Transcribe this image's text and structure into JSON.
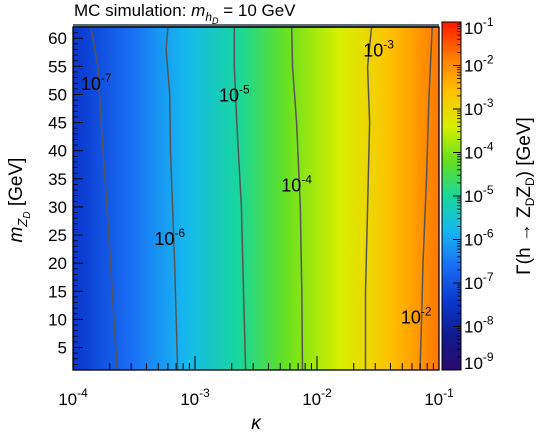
{
  "chart_data": {
    "type": "heatmap",
    "title": {
      "prefix": "MC simulation: ",
      "var": "m",
      "sub": "h",
      "subsub": "D",
      "suffix": " = 10 GeV"
    },
    "xlabel": "κ",
    "ylabel": {
      "var": "m",
      "sub": "Z",
      "subsub": "D",
      "unit": " [GeV]"
    },
    "zlabel": {
      "text": "Γ(h → Z",
      "sub1": "D",
      "mid": "Z",
      "sub2": "D",
      "end": ") [GeV]"
    },
    "x_scale": "log",
    "z_scale": "log",
    "xlim": [
      0.0001,
      0.1
    ],
    "ylim": [
      1,
      62
    ],
    "zlim": [
      1e-09,
      0.1
    ],
    "x_ticks": [
      {
        "value": 0.0001,
        "base": "10",
        "exp": "-4"
      },
      {
        "value": 0.001,
        "base": "10",
        "exp": "-3"
      },
      {
        "value": 0.01,
        "base": "10",
        "exp": "-2"
      },
      {
        "value": 0.1,
        "base": "10",
        "exp": "-1"
      }
    ],
    "y_ticks": [
      5,
      10,
      15,
      20,
      25,
      30,
      35,
      40,
      45,
      50,
      55,
      60
    ],
    "z_ticks": [
      {
        "value": 1e-09,
        "base": "10",
        "exp": "-9"
      },
      {
        "value": 1e-08,
        "base": "10",
        "exp": "-8"
      },
      {
        "value": 1e-07,
        "base": "10",
        "exp": "-7"
      },
      {
        "value": 1e-06,
        "base": "10",
        "exp": "-6"
      },
      {
        "value": 1e-05,
        "base": "10",
        "exp": "-5"
      },
      {
        "value": 0.0001,
        "base": "10",
        "exp": "-4"
      },
      {
        "value": 0.001,
        "base": "10",
        "exp": "-3"
      },
      {
        "value": 0.01,
        "base": "10",
        "exp": "-2"
      },
      {
        "value": 0.1,
        "base": "10",
        "exp": "-1"
      }
    ],
    "contours": [
      {
        "level": 1e-07,
        "base": "10",
        "exp": "-7",
        "points": [
          [
            0.00023,
            1
          ],
          [
            0.00021,
            15
          ],
          [
            0.00019,
            30
          ],
          [
            0.00017,
            45
          ],
          [
            0.00016,
            55
          ],
          [
            0.00014,
            62
          ]
        ],
        "label_at": [
          0.000155,
          52
        ]
      },
      {
        "level": 1e-06,
        "base": "10",
        "exp": "-6",
        "points": [
          [
            0.00072,
            1
          ],
          [
            0.00068,
            20
          ],
          [
            0.00063,
            40
          ],
          [
            0.00062,
            50
          ],
          [
            0.00058,
            58
          ],
          [
            0.0006,
            62
          ]
        ],
        "label_at": [
          0.00062,
          24.5
        ]
      },
      {
        "level": 1e-05,
        "base": "10",
        "exp": "-5",
        "points": [
          [
            0.0026,
            1
          ],
          [
            0.0025,
            15
          ],
          [
            0.0024,
            30
          ],
          [
            0.0022,
            45
          ],
          [
            0.0021,
            55
          ],
          [
            0.0021,
            62
          ]
        ],
        "label_at": [
          0.0021,
          50
        ]
      },
      {
        "level": 0.0001,
        "base": "10",
        "exp": "-4",
        "points": [
          [
            0.0076,
            1
          ],
          [
            0.0075,
            15
          ],
          [
            0.0073,
            30
          ],
          [
            0.0068,
            45
          ],
          [
            0.0063,
            55
          ],
          [
            0.0062,
            62
          ]
        ],
        "label_at": [
          0.0068,
          34
        ]
      },
      {
        "level": 0.001,
        "base": "10",
        "exp": "-3",
        "points": [
          [
            0.025,
            1
          ],
          [
            0.025,
            15
          ],
          [
            0.026,
            30
          ],
          [
            0.027,
            45
          ],
          [
            0.026,
            55
          ],
          [
            0.028,
            62
          ]
        ],
        "label_at": [
          0.032,
          58
        ]
      },
      {
        "level": 0.01,
        "base": "10",
        "exp": "-2",
        "points": [
          [
            0.07,
            1
          ],
          [
            0.072,
            10
          ],
          [
            0.074,
            20
          ],
          [
            0.079,
            35
          ],
          [
            0.083,
            50
          ],
          [
            0.088,
            62
          ]
        ],
        "label_at": [
          0.065,
          10.5
        ]
      }
    ],
    "colormap": [
      "#2a0a6e",
      "#101a90",
      "#0a3ad0",
      "#1a6ef5",
      "#16b8f0",
      "#19d79b",
      "#64e01e",
      "#d8ef00",
      "#ffc000",
      "#ff7a00",
      "#ff1800"
    ],
    "grid": false,
    "legend": "colorbar-right"
  }
}
